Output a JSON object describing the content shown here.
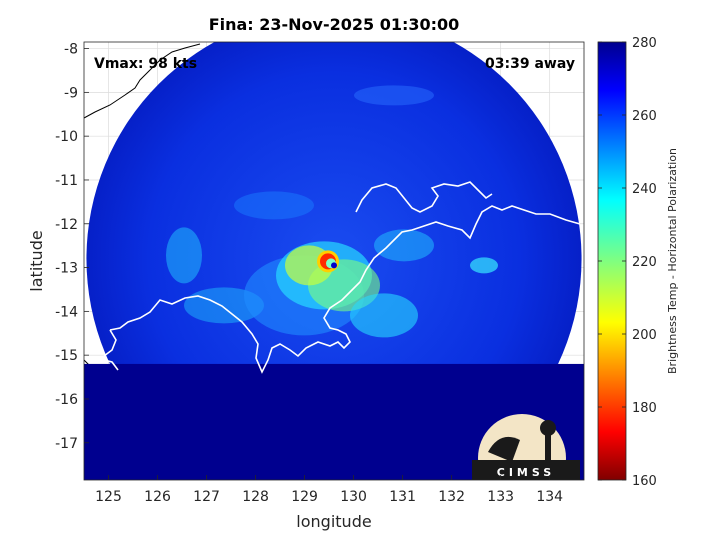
{
  "chart_data": {
    "type": "heatmap",
    "title": "Fina: 23-Nov-2025 01:30:00",
    "xlabel": "longitude",
    "ylabel": "latitude",
    "xlim": [
      124.5,
      134.7
    ],
    "ylim": [
      -17.85,
      -7.85
    ],
    "x_ticks": [
      125,
      126,
      127,
      128,
      129,
      130,
      131,
      132,
      133,
      134
    ],
    "y_ticks": [
      -8,
      -9,
      -10,
      -11,
      -12,
      -13,
      -14,
      -15,
      -16,
      -17
    ],
    "grid": true,
    "annotations": {
      "vmax": "Vmax: 98 kts",
      "time_away": "03:39 away"
    },
    "colorbar": {
      "label": "Brightness Temp - Horizontal Polarization",
      "range": [
        160,
        280
      ],
      "ticks": [
        280,
        260,
        240,
        220,
        200,
        180,
        160
      ],
      "colormap": "jet"
    },
    "storm_center": {
      "lon": 129.6,
      "lat": -12.95
    },
    "swath": {
      "center_lon": 129.6,
      "center_lat": -12.8,
      "radius_deg": 5.05
    },
    "logo_text": "CIMSS"
  },
  "colors": {
    "background_land": "#00008f",
    "swath_base": "#0a28d8",
    "coastline_in_swath": "#ffffff",
    "coastline_out_swath": "#000000",
    "grid": "#dcdcdc"
  }
}
